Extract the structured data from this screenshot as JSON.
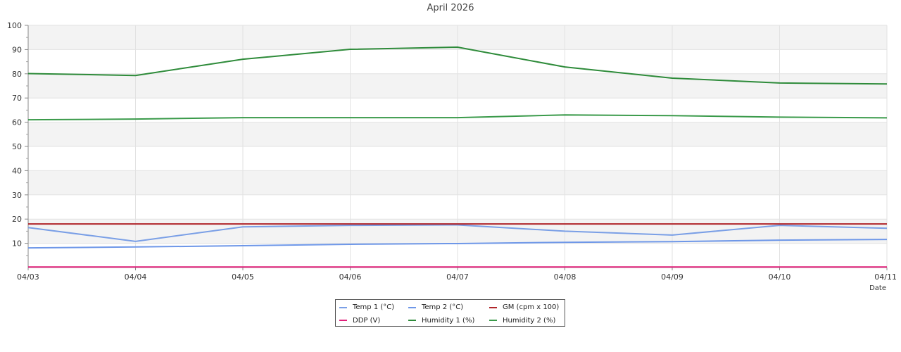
{
  "chart_data": {
    "type": "line",
    "title": "April 2026",
    "xlabel": "Date",
    "ylabel": "",
    "x": [
      "04/03",
      "04/04",
      "04/05",
      "04/06",
      "04/07",
      "04/08",
      "04/09",
      "04/10",
      "04/11"
    ],
    "ylim": [
      0,
      100
    ],
    "yticks": [
      10,
      20,
      30,
      40,
      50,
      60,
      70,
      80,
      90,
      100
    ],
    "grid": true,
    "legend_position": "bottom-center",
    "series": [
      {
        "name": "Temp 1 (°C)",
        "color": "#7a9fe6",
        "values": [
          16.5,
          10.8,
          16.8,
          17.4,
          17.6,
          15.0,
          13.4,
          17.4,
          16.2
        ]
      },
      {
        "name": "Temp 2 (°C)",
        "color": "#6e97e8",
        "values": [
          8.1,
          8.5,
          9.0,
          9.6,
          9.9,
          10.4,
          10.7,
          11.3,
          11.6
        ]
      },
      {
        "name": "GM (cpm x 100)",
        "color": "#b0252a",
        "values": [
          18.0,
          18.0,
          18.0,
          18.0,
          18.0,
          18.0,
          18.0,
          18.0,
          18.0
        ]
      },
      {
        "name": "DDP (V)",
        "color": "#e0207a",
        "values": [
          0.2,
          0.2,
          0.2,
          0.2,
          0.2,
          0.2,
          0.2,
          0.2,
          0.2
        ]
      },
      {
        "name": "Humidity 1 (%)",
        "color": "#2e8b3a",
        "values": [
          80.1,
          79.3,
          86.0,
          90.1,
          91.0,
          82.8,
          78.2,
          76.2,
          75.8
        ]
      },
      {
        "name": "Humidity 2 (%)",
        "color": "#3a9a4a",
        "values": [
          61.0,
          61.3,
          61.9,
          61.9,
          61.9,
          63.0,
          62.7,
          62.1,
          61.8
        ]
      }
    ]
  }
}
